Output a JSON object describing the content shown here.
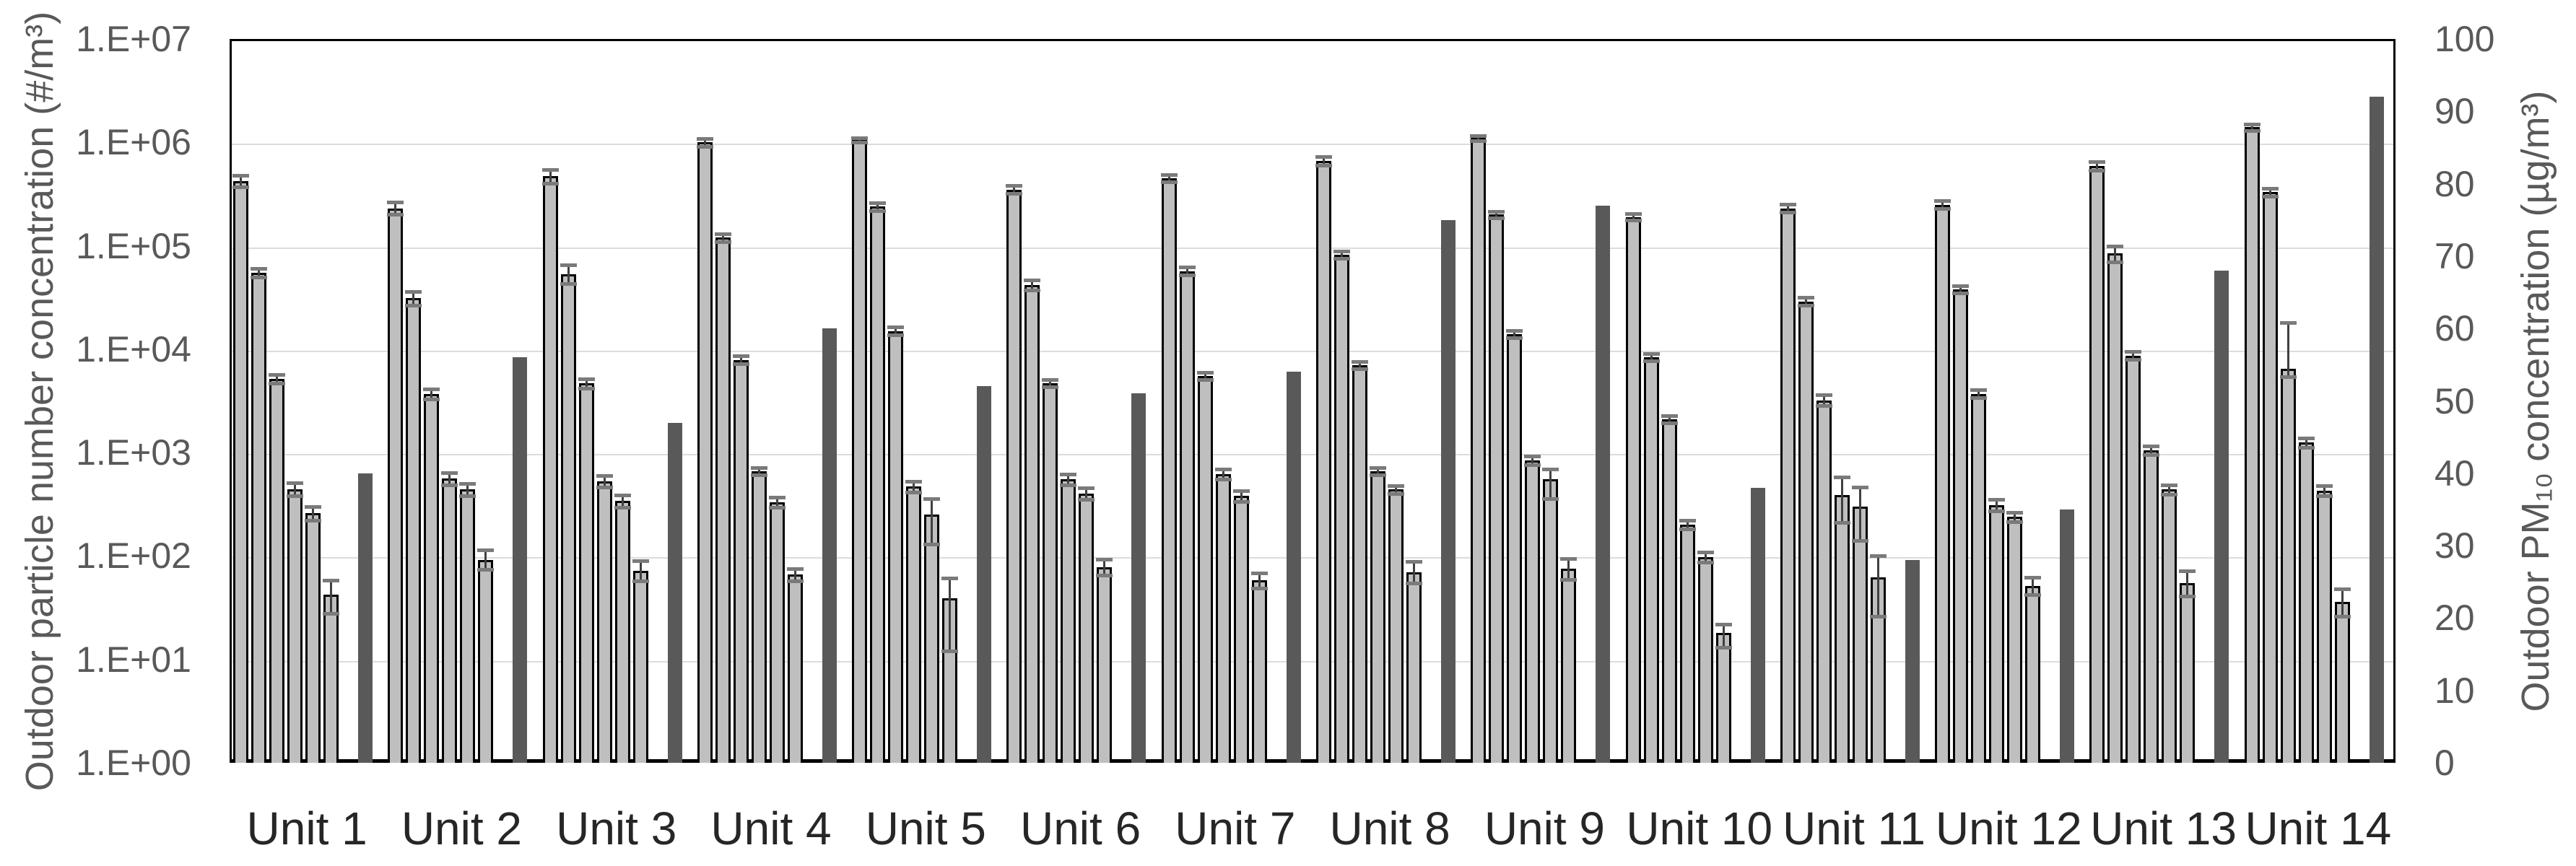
{
  "chart_data": {
    "type": "bar",
    "title": "",
    "ylabel_left": "Outdoor particle number concentration (#/m³)",
    "ylabel_right": "Outdoor PM₁₀ concentration (µg/m³)",
    "left_axis": {
      "scale": "log10",
      "min_exp": 0,
      "max_exp": 7,
      "tick_labels": [
        "1.E+00",
        "1.E+01",
        "1.E+02",
        "1.E+03",
        "1.E+04",
        "1.E+05",
        "1.E+06",
        "1.E+07"
      ]
    },
    "right_axis": {
      "min": 0,
      "max": 100,
      "step": 10,
      "tick_labels": [
        "0",
        "10",
        "20",
        "30",
        "40",
        "50",
        "60",
        "70",
        "80",
        "90",
        "100"
      ]
    },
    "categories": [
      "Unit 1",
      "Unit 2",
      "Unit 3",
      "Unit 4",
      "Unit 5",
      "Unit 6",
      "Unit 7",
      "Unit 8",
      "Unit 9",
      "Unit 10",
      "Unit 11",
      "Unit 12",
      "Unit 13",
      "Unit 14"
    ],
    "series": [
      {
        "name": "Outdoor particle number concentration (six size fractions)",
        "axis": "left",
        "style": "light-gray-outlined",
        "bars_per_unit": 6
      },
      {
        "name": "Outdoor PM10 concentration",
        "axis": "right",
        "style": "dark-gray",
        "bars_per_unit": 1
      }
    ],
    "legend_position": "none",
    "grid": "horizontal-log-decades",
    "units": [
      {
        "name": "Unit 1",
        "pn": [
          420000,
          55000,
          5200,
          440,
          260,
          42
        ],
        "pn_err_hi": [
          480000,
          60000,
          5700,
          510,
          300,
          58
        ],
        "pn_err_lo": [
          370000,
          50000,
          4700,
          380,
          220,
          28
        ],
        "pm10": 40
      },
      {
        "name": "Unit 2",
        "pn": [
          230000,
          31000,
          3700,
          560,
          440,
          92
        ],
        "pn_err_hi": [
          265000,
          36000,
          4100,
          640,
          500,
          115
        ],
        "pn_err_lo": [
          200000,
          26500,
          3300,
          490,
          385,
          74
        ],
        "pm10": 56
      },
      {
        "name": "Unit 3",
        "pn": [
          470000,
          53000,
          4700,
          530,
          340,
          72
        ],
        "pn_err_hi": [
          545000,
          65000,
          5200,
          600,
          390,
          90
        ],
        "pn_err_lo": [
          405000,
          43000,
          4200,
          465,
          295,
          57
        ],
        "pm10": 47
      },
      {
        "name": "Unit 4",
        "pn": [
          1000000,
          120000,
          7900,
          660,
          330,
          66
        ],
        "pn_err_hi": [
          1090000,
          131000,
          8600,
          720,
          370,
          76
        ],
        "pn_err_lo": [
          915000,
          110000,
          7250,
          605,
          295,
          57
        ],
        "pm10": 60
      },
      {
        "name": "Unit 5",
        "pn": [
          1050000,
          240000,
          15000,
          470,
          250,
          39
        ],
        "pn_err_hi": [
          1100000,
          262000,
          16300,
          530,
          360,
          61
        ],
        "pn_err_lo": [
          1000000,
          220000,
          13800,
          415,
          130,
          12
        ],
        "pm10": 52
      },
      {
        "name": "Unit 6",
        "pn": [
          350000,
          42000,
          4700,
          550,
          400,
          78
        ],
        "pn_err_hi": [
          381000,
          47000,
          5100,
          620,
          455,
          93
        ],
        "pn_err_lo": [
          321000,
          37500,
          4300,
          490,
          350,
          65
        ],
        "pm10": 51
      },
      {
        "name": "Unit 7",
        "pn": [
          450000,
          57000,
          5500,
          620,
          380,
          58
        ],
        "pn_err_hi": [
          490000,
          62000,
          6000,
          690,
          430,
          68
        ],
        "pn_err_lo": [
          413000,
          52000,
          5050,
          555,
          335,
          49
        ],
        "pm10": 54
      },
      {
        "name": "Unit 8",
        "pn": [
          660000,
          82000,
          7000,
          660,
          440,
          70
        ],
        "pn_err_hi": [
          730000,
          89000,
          7600,
          720,
          480,
          88
        ],
        "pn_err_lo": [
          597000,
          75500,
          6450,
          605,
          400,
          55
        ],
        "pm10": 75
      },
      {
        "name": "Unit 9",
        "pn": [
          1100000,
          200000,
          14000,
          840,
          550,
          76
        ],
        "pn_err_hi": [
          1160000,
          216000,
          15200,
          920,
          690,
          95
        ],
        "pn_err_lo": [
          1040000,
          185000,
          12900,
          765,
          360,
          59
        ],
        "pm10": 77
      },
      {
        "name": "Unit 10",
        "pn": [
          190000,
          8400,
          2100,
          200,
          97,
          18
        ],
        "pn_err_hi": [
          205000,
          9100,
          2290,
          220,
          109,
          22
        ],
        "pn_err_lo": [
          176000,
          7750,
          1930,
          182,
          87,
          13
        ],
        "pm10": 38
      },
      {
        "name": "Unit 11",
        "pn": [
          230000,
          29000,
          3200,
          390,
          300,
          62
        ],
        "pn_err_hi": [
          251000,
          31700,
          3600,
          580,
          460,
          100
        ],
        "pn_err_lo": [
          211000,
          26500,
          2850,
          210,
          140,
          26
        ],
        "pm10": 28
      },
      {
        "name": "Unit 12",
        "pn": [
          250000,
          38000,
          3700,
          310,
          240,
          51
        ],
        "pn_err_hi": [
          272000,
          41300,
          4050,
          350,
          266,
          62
        ],
        "pn_err_lo": [
          230000,
          35000,
          3380,
          274,
          216,
          42
        ],
        "pm10": 35
      },
      {
        "name": "Unit 13",
        "pn": [
          590000,
          84000,
          8700,
          1050,
          440,
          55
        ],
        "pn_err_hi": [
          646000,
          100000,
          9500,
          1150,
          490,
          72
        ],
        "pn_err_lo": [
          539000,
          70000,
          7950,
          955,
          395,
          41
        ],
        "pm10": 68
      },
      {
        "name": "Unit 14",
        "pn": [
          1400000,
          330000,
          6500,
          1250,
          430,
          36
        ],
        "pn_err_hi": [
          1510000,
          360000,
          18000,
          1390,
          480,
          48
        ],
        "pn_err_lo": [
          1300000,
          302000,
          5400,
          1120,
          382,
          26
        ],
        "pm10": 92
      }
    ],
    "colors": {
      "light_bar_fill": "#bfbfbf",
      "light_bar_outline": "#000000",
      "dark_bar_fill": "#595959",
      "gridline": "#dcdcdc",
      "plot_border": "#000000",
      "axis_text": "#595959",
      "category_text": "#262626",
      "error_whisker": "#404040",
      "error_cap": "#7a7a7a",
      "background": "#ffffff"
    }
  }
}
